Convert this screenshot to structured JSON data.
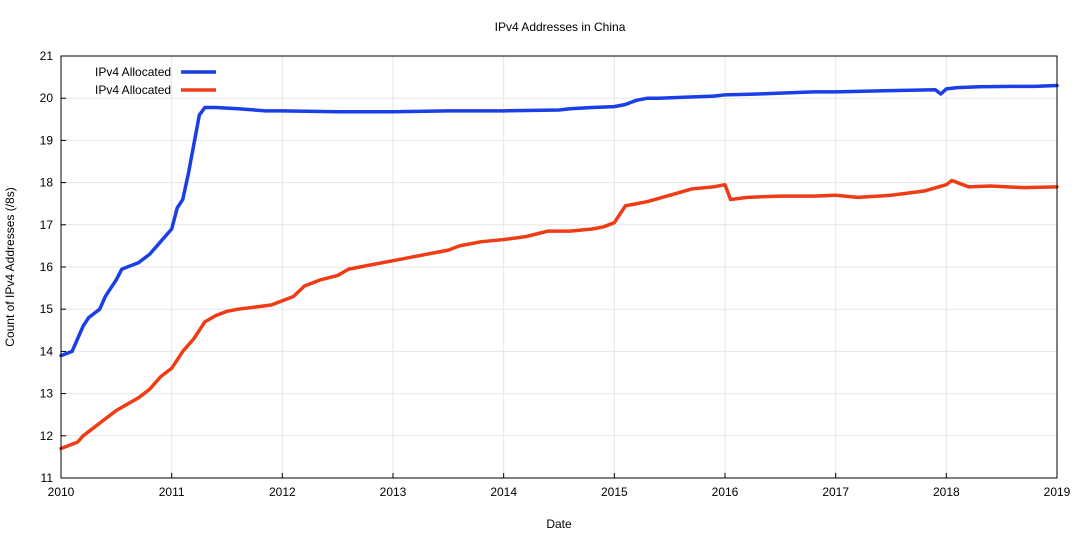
{
  "chart_data": {
    "type": "line",
    "title": "IPv4 Addresses in China",
    "xlabel": "Date",
    "ylabel": "Count of IPv4 Addresses (/8s)",
    "xlim": [
      2010,
      2019
    ],
    "ylim": [
      11,
      21
    ],
    "x_ticks": [
      "2010",
      "2011",
      "2012",
      "2013",
      "2014",
      "2015",
      "2016",
      "2017",
      "2018",
      "2019"
    ],
    "y_ticks": [
      "11",
      "12",
      "13",
      "14",
      "15",
      "16",
      "17",
      "18",
      "19",
      "20",
      "21"
    ],
    "grid": true,
    "legend_position": "top-left",
    "series": [
      {
        "name": "IPv4 Allocated",
        "color": "#1a3fe6",
        "x": [
          2010.0,
          2010.05,
          2010.1,
          2010.15,
          2010.2,
          2010.25,
          2010.3,
          2010.35,
          2010.4,
          2010.45,
          2010.5,
          2010.55,
          2010.6,
          2010.65,
          2010.7,
          2010.8,
          2010.9,
          2011.0,
          2011.05,
          2011.1,
          2011.15,
          2011.2,
          2011.25,
          2011.3,
          2011.4,
          2011.6,
          2011.85,
          2012.0,
          2012.5,
          2013.0,
          2013.5,
          2014.0,
          2014.5,
          2014.6,
          2014.8,
          2015.0,
          2015.1,
          2015.2,
          2015.3,
          2015.4,
          2015.6,
          2015.9,
          2016.0,
          2016.3,
          2016.5,
          2016.8,
          2017.0,
          2017.5,
          2017.9,
          2017.95,
          2018.0,
          2018.1,
          2018.3,
          2018.6,
          2018.8,
          2019.0
        ],
        "y": [
          13.9,
          13.95,
          14.0,
          14.3,
          14.6,
          14.8,
          14.9,
          15.0,
          15.3,
          15.5,
          15.7,
          15.95,
          16.0,
          16.05,
          16.1,
          16.3,
          16.6,
          16.9,
          17.4,
          17.6,
          18.2,
          18.9,
          19.6,
          19.78,
          19.78,
          19.75,
          19.7,
          19.7,
          19.68,
          19.68,
          19.7,
          19.7,
          19.72,
          19.75,
          19.78,
          19.8,
          19.85,
          19.95,
          20.0,
          20.0,
          20.02,
          20.05,
          20.08,
          20.1,
          20.12,
          20.15,
          20.15,
          20.18,
          20.2,
          20.1,
          20.22,
          20.25,
          20.27,
          20.28,
          20.28,
          20.3
        ]
      },
      {
        "name": "IPv4 Allocated",
        "color": "#f03c14",
        "x": [
          2010.0,
          2010.05,
          2010.15,
          2010.2,
          2010.3,
          2010.4,
          2010.5,
          2010.6,
          2010.7,
          2010.8,
          2010.9,
          2011.0,
          2011.1,
          2011.2,
          2011.25,
          2011.3,
          2011.4,
          2011.5,
          2011.6,
          2011.75,
          2011.9,
          2012.0,
          2012.1,
          2012.2,
          2012.35,
          2012.5,
          2012.6,
          2012.8,
          2013.0,
          2013.2,
          2013.4,
          2013.5,
          2013.6,
          2013.8,
          2014.0,
          2014.2,
          2014.4,
          2014.6,
          2014.8,
          2014.9,
          2015.0,
          2015.1,
          2015.3,
          2015.5,
          2015.7,
          2015.9,
          2016.0,
          2016.05,
          2016.2,
          2016.5,
          2016.8,
          2017.0,
          2017.2,
          2017.5,
          2017.8,
          2018.0,
          2018.05,
          2018.2,
          2018.4,
          2018.7,
          2019.0
        ],
        "y": [
          11.7,
          11.75,
          11.85,
          12.0,
          12.2,
          12.4,
          12.6,
          12.75,
          12.9,
          13.1,
          13.4,
          13.6,
          14.0,
          14.3,
          14.5,
          14.7,
          14.85,
          14.95,
          15.0,
          15.05,
          15.1,
          15.2,
          15.3,
          15.55,
          15.7,
          15.8,
          15.95,
          16.05,
          16.15,
          16.25,
          16.35,
          16.4,
          16.5,
          16.6,
          16.65,
          16.72,
          16.85,
          16.85,
          16.9,
          16.95,
          17.05,
          17.45,
          17.55,
          17.7,
          17.85,
          17.9,
          17.95,
          17.6,
          17.65,
          17.68,
          17.68,
          17.7,
          17.65,
          17.7,
          17.8,
          17.95,
          18.05,
          17.9,
          17.92,
          17.88,
          17.9
        ]
      }
    ]
  }
}
